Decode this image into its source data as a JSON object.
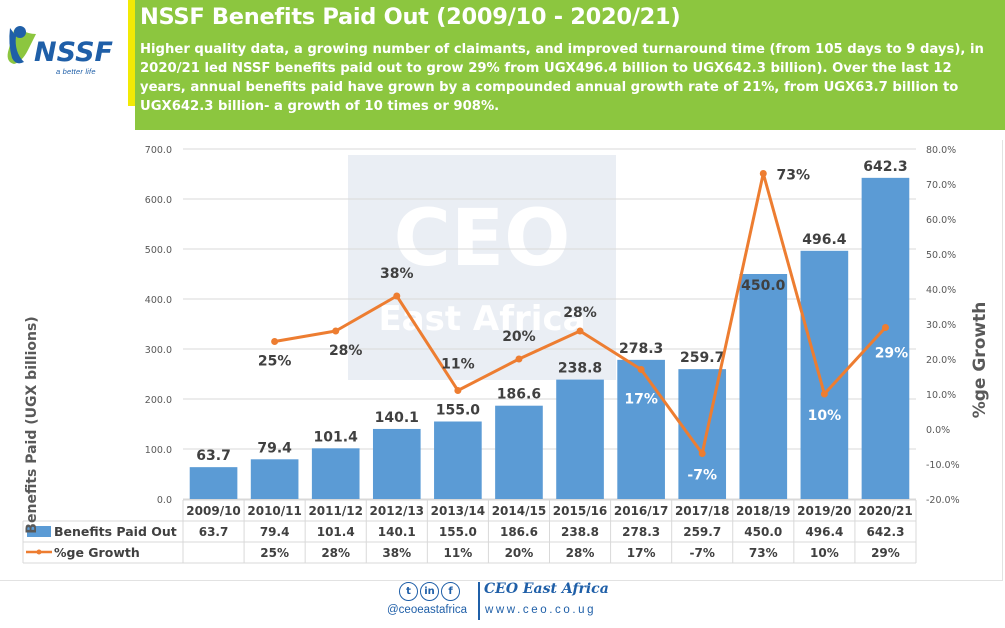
{
  "logo": {
    "name": "NSSF",
    "tagline": "a better life"
  },
  "header": {
    "title": "NSSF Benefits Paid Out (2009/10 - 2020/21)",
    "description": "Higher quality data, a growing number of claimants, and improved turnaround time (from 105 days to 9 days), in 2020/21 led NSSF benefits paid out to grow 29% from UGX496.4 billion to UGX642.3 billion). Over the last 12 years, annual benefits paid have grown by a compounded annual growth rate of 21%, from UGX63.7 billion to UGX642.3 billion- a growth of 10 times or 908%."
  },
  "colors": {
    "header_green": "#8cc63f",
    "accent_yellow": "#f2ea05",
    "bar_blue": "#5b9bd5",
    "line_orange": "#ed7d31",
    "brand_blue": "#1f5fa8"
  },
  "watermark": {
    "line1": "CEO",
    "line2": "East Africa"
  },
  "chart_data": {
    "type": "bar+line",
    "categories": [
      "2009/10",
      "2010/11",
      "2011/12",
      "2012/13",
      "2013/14",
      "2014/15",
      "2015/16",
      "2016/17",
      "2017/18",
      "2018/19",
      "2019/20",
      "2020/21"
    ],
    "series": [
      {
        "name": "Benefits Paid Out",
        "type": "bar",
        "axis": "left",
        "values": [
          63.7,
          79.4,
          101.4,
          140.1,
          155.0,
          186.6,
          238.8,
          278.3,
          259.7,
          450.0,
          496.4,
          642.3
        ],
        "labels": [
          "63.7",
          "79.4",
          "101.4",
          "140.1",
          "155.0",
          "186.6",
          "238.8",
          "278.3",
          "259.7",
          "450.0",
          "496.4",
          "642.3"
        ]
      },
      {
        "name": "%ge Growth",
        "type": "line",
        "axis": "right",
        "values": [
          null,
          25,
          28,
          38,
          11,
          20,
          28,
          17,
          -7,
          73,
          10,
          29
        ],
        "labels": [
          "",
          "25%",
          "28%",
          "38%",
          "11%",
          "20%",
          "28%",
          "17%",
          "-7%",
          "73%",
          "10%",
          "29%"
        ]
      }
    ],
    "ylabel": "Benefits Paid (UGX billions)",
    "y2label": "%ge Growth",
    "ylim": [
      0,
      700
    ],
    "y2lim": [
      -20,
      80
    ],
    "yticks": [
      "0.0",
      "100.0",
      "200.0",
      "300.0",
      "400.0",
      "500.0",
      "600.0",
      "700.0"
    ],
    "y2ticks": [
      "-20.0%",
      "-10.0%",
      "0.0%",
      "10.0%",
      "20.0%",
      "30.0%",
      "40.0%",
      "50.0%",
      "60.0%",
      "70.0%",
      "80.0%"
    ],
    "grid": true,
    "data_table": true,
    "legend": "data-table"
  },
  "footer": {
    "social": [
      "twitter-icon",
      "linkedin-icon",
      "facebook-icon"
    ],
    "social_glyphs": [
      "t",
      "in",
      "f"
    ],
    "handle": "@ceoeastafrica",
    "brand": "CEO East Africa",
    "website": "www.ceo.co.ug"
  }
}
